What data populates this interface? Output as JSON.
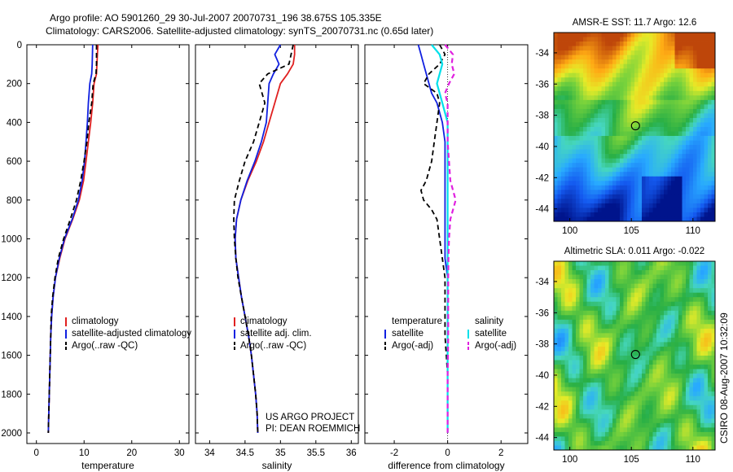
{
  "header": {
    "line1": "Argo profile: AO 5901260_29 30-Jul-2007 20070731_196 38.675S 105.335E",
    "line2": "Climatology: CARS2006. Satellite-adjusted climatology: synTS_20070731.nc (0.65d later)"
  },
  "side_stamp": "CSIRO 08-Aug-2007 10:32:09",
  "credit": {
    "line1": "US ARGO PROJECT",
    "line2": "PI: DEAN ROEMMICH"
  },
  "colors": {
    "climatology": "#e02020",
    "satellite": "#1020e0",
    "argo": "#000000",
    "salinity_satellite": "#00e0ea",
    "salinity_argo": "#e020e0"
  },
  "chart_data": [
    {
      "type": "line",
      "id": "temperature",
      "xlabel": "temperature",
      "xlim": [
        -2,
        32
      ],
      "ylim": [
        2050,
        0
      ],
      "xticks": [
        "0",
        "10",
        "20",
        "30"
      ],
      "yticks": [
        "0",
        "200",
        "400",
        "600",
        "800",
        "1000",
        "1200",
        "1400",
        "1600",
        "1800",
        "2000"
      ],
      "depth": [
        0,
        100,
        150,
        200,
        300,
        400,
        500,
        600,
        700,
        800,
        900,
        1000,
        1100,
        1200,
        1300,
        1400,
        1500,
        1600,
        1700,
        1800,
        1900,
        2000
      ],
      "legend": [
        "climatology",
        "satellite-adjusted climatology",
        "Argo(..raw -QC)"
      ],
      "series": [
        {
          "name": "climatology",
          "values": [
            12.9,
            12.7,
            12.6,
            12.1,
            11.8,
            11.4,
            10.9,
            10.4,
            9.9,
            9.0,
            7.6,
            6.0,
            4.9,
            4.0,
            3.5,
            3.2,
            3.0,
            2.9,
            2.8,
            2.7,
            2.6,
            2.5
          ]
        },
        {
          "name": "satellite-adjusted climatology",
          "values": [
            11.8,
            11.7,
            11.6,
            11.2,
            10.9,
            10.7,
            10.4,
            10.1,
            9.6,
            8.8,
            7.5,
            5.9,
            4.8,
            4.0,
            3.5,
            3.2,
            3.0,
            2.9,
            2.8,
            2.7,
            2.6,
            2.5
          ]
        },
        {
          "name": "Argo(..raw -QC)",
          "values": [
            12.6,
            12.6,
            12.5,
            11.9,
            11.6,
            11.0,
            10.6,
            10.0,
            9.3,
            8.4,
            7.1,
            5.7,
            4.6,
            3.9,
            3.4,
            3.1,
            3.0,
            2.9,
            2.8,
            2.7,
            2.6,
            2.5
          ]
        }
      ]
    },
    {
      "type": "line",
      "id": "salinity",
      "xlabel": "salinity",
      "xlim": [
        33.8,
        36.1
      ],
      "ylim": [
        2050,
        0
      ],
      "xticks": [
        "34",
        "34.5",
        "35",
        "35.5",
        "36"
      ],
      "depth": [
        0,
        50,
        100,
        150,
        200,
        300,
        400,
        500,
        600,
        700,
        800,
        900,
        1000,
        1100,
        1200,
        1300,
        1400,
        1500,
        1600,
        1700,
        1800,
        1900,
        2000
      ],
      "legend": [
        "climatology",
        "satellite adj. clim.",
        "Argo(..raw -QC)"
      ],
      "series": [
        {
          "name": "climatology",
          "values": [
            35.2,
            35.2,
            35.18,
            35.1,
            35.0,
            34.92,
            34.84,
            34.76,
            34.66,
            34.54,
            34.44,
            34.38,
            34.36,
            34.37,
            34.41,
            34.45,
            34.5,
            34.55,
            34.59,
            34.62,
            34.65,
            34.67,
            34.68
          ]
        },
        {
          "name": "satellite adj. clim.",
          "values": [
            35.0,
            34.92,
            34.98,
            34.9,
            34.84,
            34.82,
            34.8,
            34.73,
            34.64,
            34.53,
            34.44,
            34.38,
            34.36,
            34.37,
            34.41,
            34.45,
            34.5,
            34.55,
            34.59,
            34.62,
            34.65,
            34.67,
            34.68
          ]
        },
        {
          "name": "Argo(..raw -QC)",
          "values": [
            35.18,
            35.15,
            35.12,
            34.82,
            34.7,
            34.78,
            34.7,
            34.62,
            34.5,
            34.42,
            34.35,
            34.34,
            34.35,
            34.37,
            34.4,
            34.45,
            34.5,
            34.55,
            34.59,
            34.62,
            34.65,
            34.67,
            34.68
          ]
        }
      ]
    },
    {
      "type": "line",
      "id": "difference",
      "xlabel": "difference from climatology",
      "xlim": [
        -3.1,
        3.0
      ],
      "ylim": [
        2050,
        0
      ],
      "xticks": [
        "-2",
        "0",
        "2"
      ],
      "depth": [
        0,
        50,
        100,
        150,
        200,
        250,
        300,
        400,
        500,
        600,
        700,
        750,
        800,
        850,
        900,
        1000,
        1100,
        1200,
        1300,
        1400,
        1500,
        1600,
        1700,
        1800,
        1900,
        2000
      ],
      "legend_left_title": "temperature",
      "legend_right_title": "salinity",
      "legend_left": [
        "satellite",
        "Argo(-adj)"
      ],
      "legend_right": [
        "satellite",
        "Argo(-adj)"
      ],
      "series": [
        {
          "name": "temperature satellite",
          "values": [
            -1.1,
            -1.0,
            -0.9,
            -0.8,
            -0.7,
            -0.6,
            -0.4,
            -0.2,
            -0.1,
            -0.1,
            -0.1,
            -0.1,
            -0.1,
            -0.1,
            -0.1,
            -0.1,
            -0.1,
            0,
            0,
            0,
            0,
            0,
            0,
            0,
            0,
            0
          ]
        },
        {
          "name": "temperature Argo(-adj)",
          "values": [
            -0.3,
            -0.1,
            -0.3,
            -0.7,
            -0.9,
            -0.4,
            -0.3,
            -0.4,
            -0.5,
            -0.6,
            -0.8,
            -1.0,
            -0.9,
            -0.6,
            -0.4,
            -0.3,
            -0.2,
            -0.1,
            -0.1,
            -0.1,
            -0.1,
            -0.05,
            0,
            0,
            0,
            0
          ]
        },
        {
          "name": "salinity satellite",
          "values": [
            -0.6,
            -0.3,
            -0.2,
            -0.3,
            -0.4,
            -0.3,
            -0.2,
            0,
            0,
            0,
            0,
            0,
            0,
            0,
            0,
            0,
            0,
            0,
            0,
            0,
            0,
            0,
            0,
            0,
            0,
            0
          ]
        },
        {
          "name": "salinity Argo(-adj)",
          "values": [
            -0.1,
            0.2,
            0.15,
            0.25,
            0.05,
            -0.1,
            0,
            0,
            0,
            0.05,
            0.1,
            0.2,
            0.3,
            0.2,
            0.1,
            0.05,
            0.03,
            0.02,
            0.02,
            0.02,
            0.02,
            0.01,
            0,
            0,
            0,
            0
          ]
        }
      ]
    },
    {
      "type": "heatmap",
      "id": "sst",
      "title": "AMSR-E SST: 11.7 Argo: 12.6",
      "xticks": [
        "100",
        "105",
        "110"
      ],
      "yticks": [
        "-34",
        "-36",
        "-38",
        "-40",
        "-42",
        "-44"
      ],
      "xlim": [
        98.7,
        111.8
      ],
      "ylim": [
        -44.8,
        -32.7
      ],
      "marker": {
        "lon": 105.335,
        "lat": -38.675
      }
    },
    {
      "type": "heatmap",
      "id": "sla",
      "title": "Altimetric SLA: 0.011 Argo: -0.022",
      "xticks": [
        "100",
        "105",
        "110"
      ],
      "yticks": [
        "-34",
        "-36",
        "-38",
        "-40",
        "-42",
        "-44"
      ],
      "xlim": [
        98.7,
        111.8
      ],
      "ylim": [
        -44.8,
        -32.7
      ],
      "marker": {
        "lon": 105.335,
        "lat": -38.675
      }
    }
  ]
}
